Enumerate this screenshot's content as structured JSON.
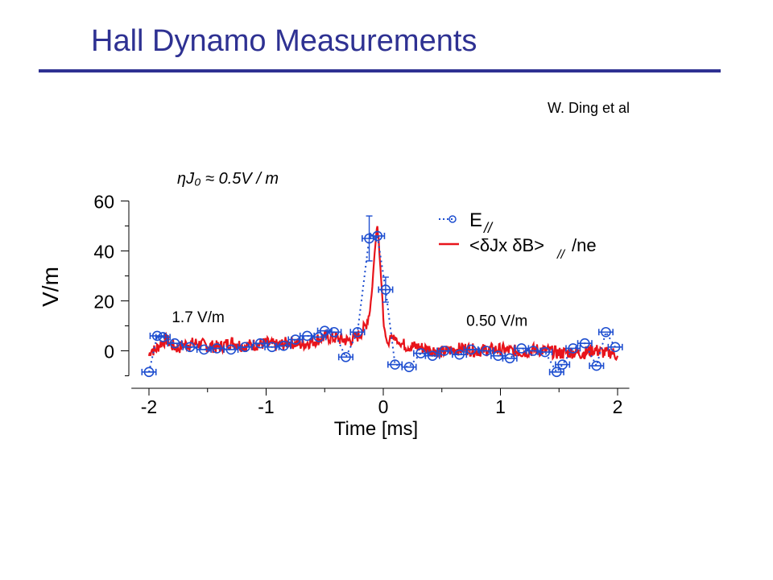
{
  "slide": {
    "title": "Hall Dynamo Measurements",
    "author": "W. Ding et al"
  },
  "colors": {
    "title": "#2e3192",
    "data_points": "#1f4fd0",
    "red_trace": "#e8141b",
    "axes": "#000000"
  },
  "chart_data": {
    "type": "line",
    "xlabel": "Time [ms]",
    "ylabel": "V/m",
    "xlim": [
      -2.1,
      2.1
    ],
    "ylim": [
      -11,
      62
    ],
    "x_ticks": [
      -2,
      -1,
      0,
      1,
      2
    ],
    "x_tick_labels": [
      "-2",
      "-1",
      "0",
      "1",
      "2"
    ],
    "y_ticks": [
      0,
      20,
      40,
      60
    ],
    "y_tick_labels": [
      "0",
      "20",
      "40",
      "60"
    ],
    "grid": false,
    "legend_position": "top-right",
    "formula_annotation": "ηJ₀ ≈ 0.5V / m",
    "annotations": [
      {
        "text": "1.7 V/m",
        "x": -1.58,
        "y": 11.5
      },
      {
        "text": "0.50 V/m",
        "x": 0.97,
        "y": 10.0
      }
    ],
    "series": [
      {
        "name": "E//",
        "style": "dotted line with circle markers and horizontal error bars",
        "x": [
          -2.0,
          -1.93,
          -1.88,
          -1.78,
          -1.65,
          -1.53,
          -1.42,
          -1.3,
          -1.18,
          -1.05,
          -0.95,
          -0.85,
          -0.75,
          -0.65,
          -0.55,
          -0.5,
          -0.42,
          -0.32,
          -0.22,
          -0.12,
          -0.05,
          0.02,
          0.1,
          0.22,
          0.32,
          0.42,
          0.52,
          0.65,
          0.75,
          0.88,
          0.98,
          1.08,
          1.18,
          1.28,
          1.38,
          1.48,
          1.53,
          1.62,
          1.72,
          1.82,
          1.9,
          1.98
        ],
        "y": [
          -8.5,
          6.0,
          5.5,
          3.0,
          1.5,
          0.5,
          1.0,
          0.5,
          1.5,
          3.0,
          1.5,
          2.0,
          4.5,
          6.0,
          5.5,
          8.0,
          7.5,
          -2.5,
          7.5,
          45.0,
          46.0,
          24.5,
          -5.5,
          -6.5,
          -1.0,
          -2.0,
          0.0,
          -1.5,
          0.5,
          0.0,
          -2.0,
          -3.0,
          1.0,
          0.0,
          -0.5,
          -8.5,
          -5.5,
          1.0,
          3.0,
          -6.0,
          7.5,
          1.5
        ],
        "x_err": 0.06,
        "y_err": [
          0,
          0,
          0,
          0,
          0,
          0,
          0,
          0,
          0,
          0,
          0,
          0,
          0,
          0,
          0,
          0,
          0,
          0,
          0,
          9.0,
          0,
          5.0,
          0,
          0,
          0,
          0,
          0,
          0,
          0,
          0,
          0,
          0,
          0,
          0,
          0,
          0,
          0,
          0,
          0,
          0,
          0,
          0
        ]
      },
      {
        "name": "<δJx δB> // /ne",
        "style": "solid noisy line",
        "x": [
          -2.0,
          -1.98,
          -1.95,
          -1.9,
          -1.85,
          -1.8,
          -1.75,
          -1.7,
          -1.6,
          -1.5,
          -1.4,
          -1.3,
          -1.2,
          -1.1,
          -1.0,
          -0.9,
          -0.8,
          -0.7,
          -0.6,
          -0.5,
          -0.4,
          -0.3,
          -0.25,
          -0.2,
          -0.18,
          -0.15,
          -0.12,
          -0.1,
          -0.08,
          -0.06,
          -0.05,
          -0.04,
          -0.03,
          -0.02,
          -0.01,
          0.0,
          0.01,
          0.02,
          0.04,
          0.06,
          0.1,
          0.15,
          0.2,
          0.3,
          0.4,
          0.5,
          0.6,
          0.7,
          0.8,
          0.9,
          1.0,
          1.1,
          1.2,
          1.3,
          1.4,
          1.5,
          1.6,
          1.7,
          1.8,
          1.9,
          1.95,
          2.0
        ],
        "y": [
          -2.0,
          1.0,
          0.0,
          3.0,
          4.5,
          2.0,
          1.0,
          2.5,
          3.0,
          2.0,
          1.5,
          3.5,
          2.0,
          2.5,
          3.0,
          2.0,
          3.5,
          2.5,
          4.0,
          5.5,
          5.0,
          4.0,
          5.0,
          6.5,
          8.0,
          10.0,
          15.0,
          22.0,
          35.0,
          48.0,
          50.0,
          45.0,
          38.0,
          30.0,
          22.0,
          14.0,
          8.0,
          5.0,
          2.0,
          6.0,
          5.0,
          3.0,
          2.0,
          1.5,
          0.5,
          -0.5,
          0.5,
          1.0,
          0.0,
          0.5,
          0.5,
          0.0,
          -0.5,
          0.5,
          0.0,
          -1.0,
          -0.5,
          -1.0,
          0.5,
          -1.0,
          -0.5,
          -2.0
        ]
      }
    ]
  }
}
